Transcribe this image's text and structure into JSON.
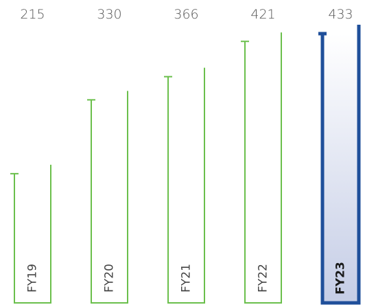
{
  "chart_data": {
    "type": "bar",
    "title": "",
    "xlabel": "",
    "ylabel": "",
    "categories": [
      "FY19",
      "FY20",
      "FY21",
      "FY22",
      "FY23"
    ],
    "values": [
      215,
      330,
      366,
      421,
      433
    ],
    "value_labels": [
      "215",
      "330",
      "366",
      "421",
      "433"
    ],
    "highlight_index": 4,
    "ylim": [
      0,
      433
    ],
    "grid": false,
    "legend": "none"
  },
  "colors": {
    "bar_outline": "#6abf4b",
    "highlight_outline": "#1f4f9a",
    "highlight_fill_top": "#ffffff",
    "highlight_fill_bottom": "#c5cde6",
    "value_text": "#555555",
    "category_text": "#444444"
  }
}
